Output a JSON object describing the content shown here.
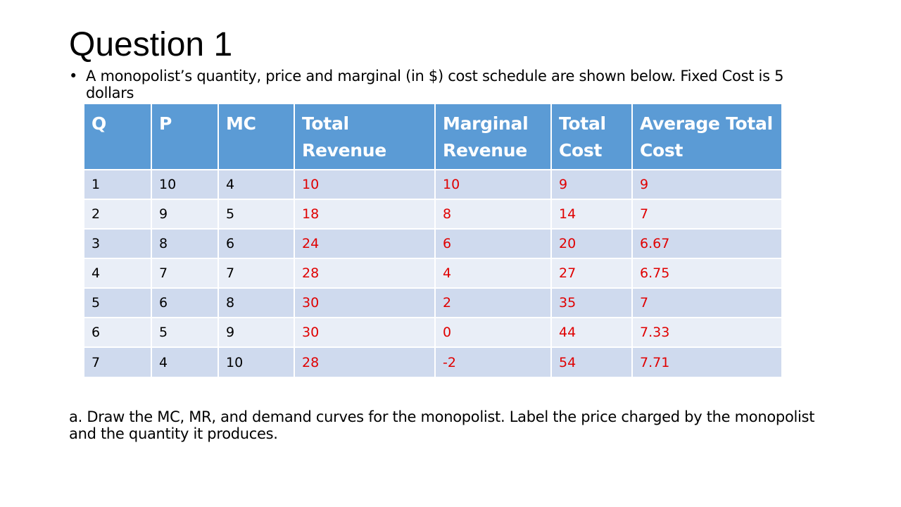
{
  "slide": {
    "title": "Question 1",
    "bullet": "A monopolist’s quantity, price and marginal (in $) cost schedule are shown below. Fixed Cost is 5 dollars",
    "question_a": "a. Draw the MC, MR, and demand curves for the monopolist. Label the price charged by the monopolist and the quantity it produces."
  },
  "table": {
    "headers": [
      "Q",
      "P",
      "MC",
      "Total Revenue",
      "Marginal Revenue",
      "Total Cost",
      "Average Total Cost"
    ],
    "rows": [
      [
        "1",
        "10",
        "4",
        "10",
        "10",
        "9",
        "9"
      ],
      [
        "2",
        "9",
        "5",
        "18",
        "8",
        "14",
        "7"
      ],
      [
        "3",
        "8",
        "6",
        "24",
        "6",
        "20",
        "6.67"
      ],
      [
        "4",
        "7",
        "7",
        "28",
        "4",
        "27",
        "6.75"
      ],
      [
        "5",
        "6",
        "8",
        "30",
        "2",
        "35",
        "7"
      ],
      [
        "6",
        "5",
        "9",
        "30",
        "0",
        "44",
        "7.33"
      ],
      [
        "7",
        "4",
        "10",
        "28",
        "-2",
        "54",
        "7.71"
      ]
    ]
  },
  "colors": {
    "header_bg": "#5b9bd5",
    "row_odd_bg": "#cfdaee",
    "row_even_bg": "#e9eef7",
    "answer_text": "#e00000",
    "given_text": "#000000"
  }
}
